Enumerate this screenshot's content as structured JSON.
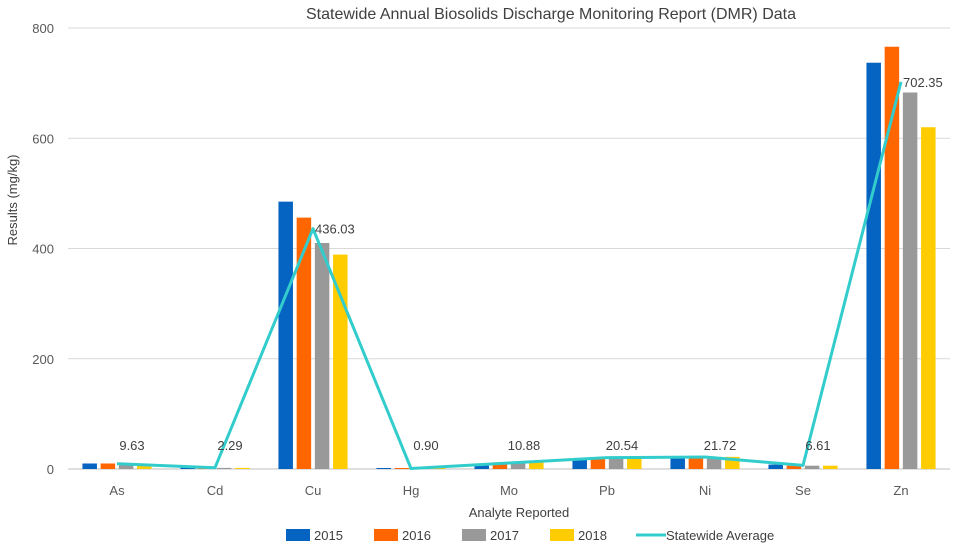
{
  "chart_data": {
    "type": "bar",
    "title": "Statewide Annual Biosolids Discharge Monitoring Report (DMR) Data",
    "xlabel": "Analyte Reported",
    "ylabel": "Results (mg/kg)",
    "ylim": [
      0,
      800
    ],
    "yticks": [
      0,
      200,
      400,
      600,
      800
    ],
    "grid": true,
    "legend_position": "bottom",
    "categories": [
      "As",
      "Cd",
      "Cu",
      "Hg",
      "Mo",
      "Pb",
      "Ni",
      "Se",
      "Zn"
    ],
    "series": [
      {
        "name": "2015",
        "type": "bar",
        "color": "#0563C1",
        "values": [
          10,
          3,
          485,
          1.5,
          9,
          18,
          20,
          8,
          737
        ]
      },
      {
        "name": "2016",
        "type": "bar",
        "color": "#FF6600",
        "values": [
          10,
          2,
          456,
          1,
          12,
          20,
          21,
          6,
          766
        ]
      },
      {
        "name": "2017",
        "type": "bar",
        "color": "#999999",
        "values": [
          9,
          2,
          410,
          0.5,
          11,
          22,
          22,
          6,
          683
        ]
      },
      {
        "name": "2018",
        "type": "bar",
        "color": "#FFCC00",
        "values": [
          9,
          2,
          389,
          0.5,
          12,
          21,
          22,
          6,
          620
        ]
      },
      {
        "name": "Statewide Average",
        "type": "line",
        "color": "#33CCCC",
        "values": [
          9.63,
          2.29,
          436.03,
          0.9,
          10.88,
          20.54,
          21.72,
          6.61,
          702.35
        ],
        "labels": [
          "9.63",
          "2.29",
          "436.03",
          "0.90",
          "10.88",
          "20.54",
          "21.72",
          "6.61",
          "702.35"
        ]
      }
    ]
  }
}
